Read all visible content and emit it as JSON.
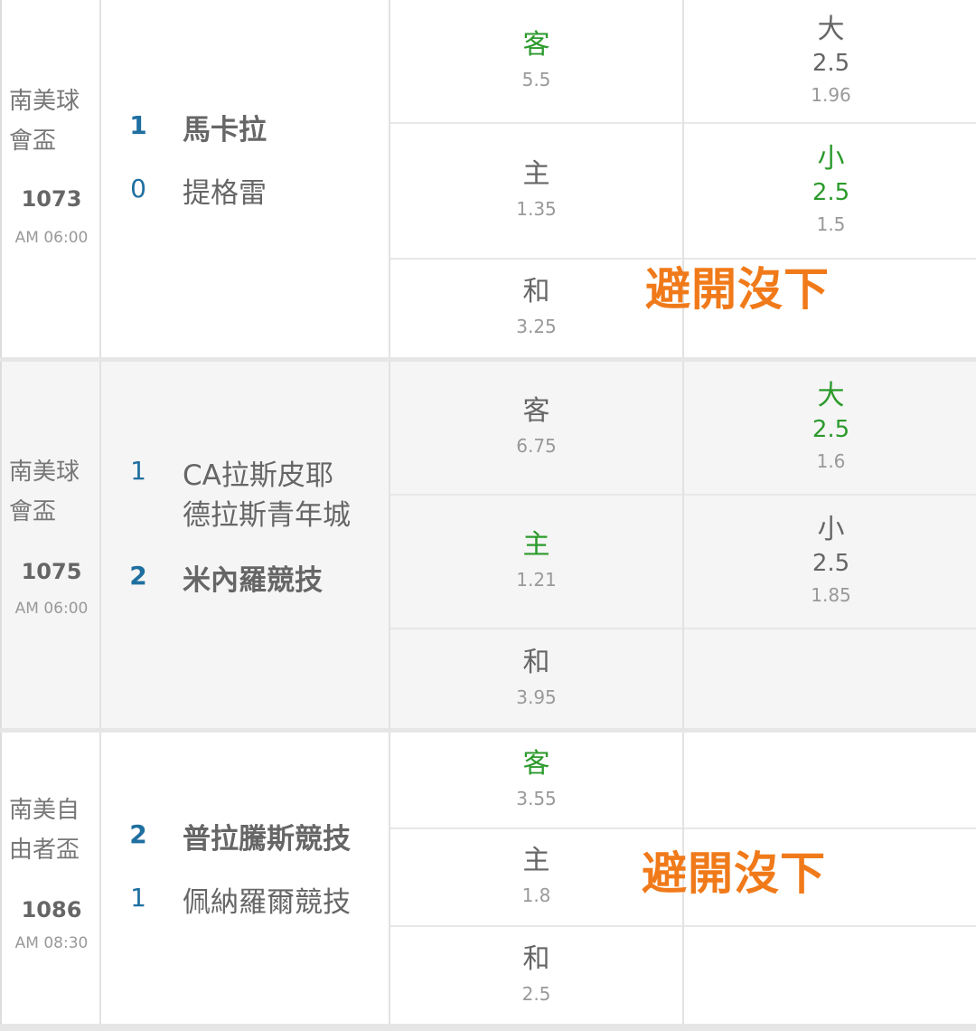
{
  "colors": {
    "accent_green": "#2c9a2c",
    "note_orange": "#f07a1a",
    "score_blue": "#1f6fa0"
  },
  "matches": [
    {
      "league": [
        "南美球",
        "會盃"
      ],
      "number": "1073",
      "time": "AM 06:00",
      "teams": [
        {
          "score": "1",
          "name": "馬卡拉",
          "bold": true
        },
        {
          "score": "0",
          "name": "提格雷",
          "bold": false
        }
      ],
      "odds_1x2": [
        {
          "label": "客",
          "odd": "5.5",
          "highlight": true
        },
        {
          "label": "主",
          "odd": "1.35",
          "highlight": false
        },
        {
          "label": "和",
          "odd": "3.25",
          "highlight": false
        }
      ],
      "odds_ou": [
        {
          "label": "大",
          "line": "2.5",
          "odd": "1.96",
          "highlight": false
        },
        {
          "label": "小",
          "line": "2.5",
          "odd": "1.5",
          "highlight": true
        }
      ],
      "note": "避開沒下"
    },
    {
      "league": [
        "南美球",
        "會盃"
      ],
      "number": "1075",
      "time": "AM 06:00",
      "teams": [
        {
          "score": "1",
          "name": "CA拉斯皮耶",
          "bold": false
        },
        {
          "score": "",
          "name": "德拉斯青年城",
          "bold": false
        },
        {
          "score": "2",
          "name": "米內羅競技",
          "bold": true
        }
      ],
      "odds_1x2": [
        {
          "label": "客",
          "odd": "6.75",
          "highlight": false
        },
        {
          "label": "主",
          "odd": "1.21",
          "highlight": true
        },
        {
          "label": "和",
          "odd": "3.95",
          "highlight": false
        }
      ],
      "odds_ou": [
        {
          "label": "大",
          "line": "2.5",
          "odd": "1.6",
          "highlight": true
        },
        {
          "label": "小",
          "line": "2.5",
          "odd": "1.85",
          "highlight": false
        }
      ],
      "note": ""
    },
    {
      "league": [
        "南美自",
        "由者盃"
      ],
      "number": "1086",
      "time": "AM 08:30",
      "teams": [
        {
          "score": "2",
          "name": "普拉騰斯競技",
          "bold": true
        },
        {
          "score": "1",
          "name": "佩納羅爾競技",
          "bold": false
        }
      ],
      "odds_1x2": [
        {
          "label": "客",
          "odd": "3.55",
          "highlight": true
        },
        {
          "label": "主",
          "odd": "1.8",
          "highlight": false
        },
        {
          "label": "和",
          "odd": "2.5",
          "highlight": false
        }
      ],
      "odds_ou": [],
      "note": "避開沒下"
    }
  ]
}
